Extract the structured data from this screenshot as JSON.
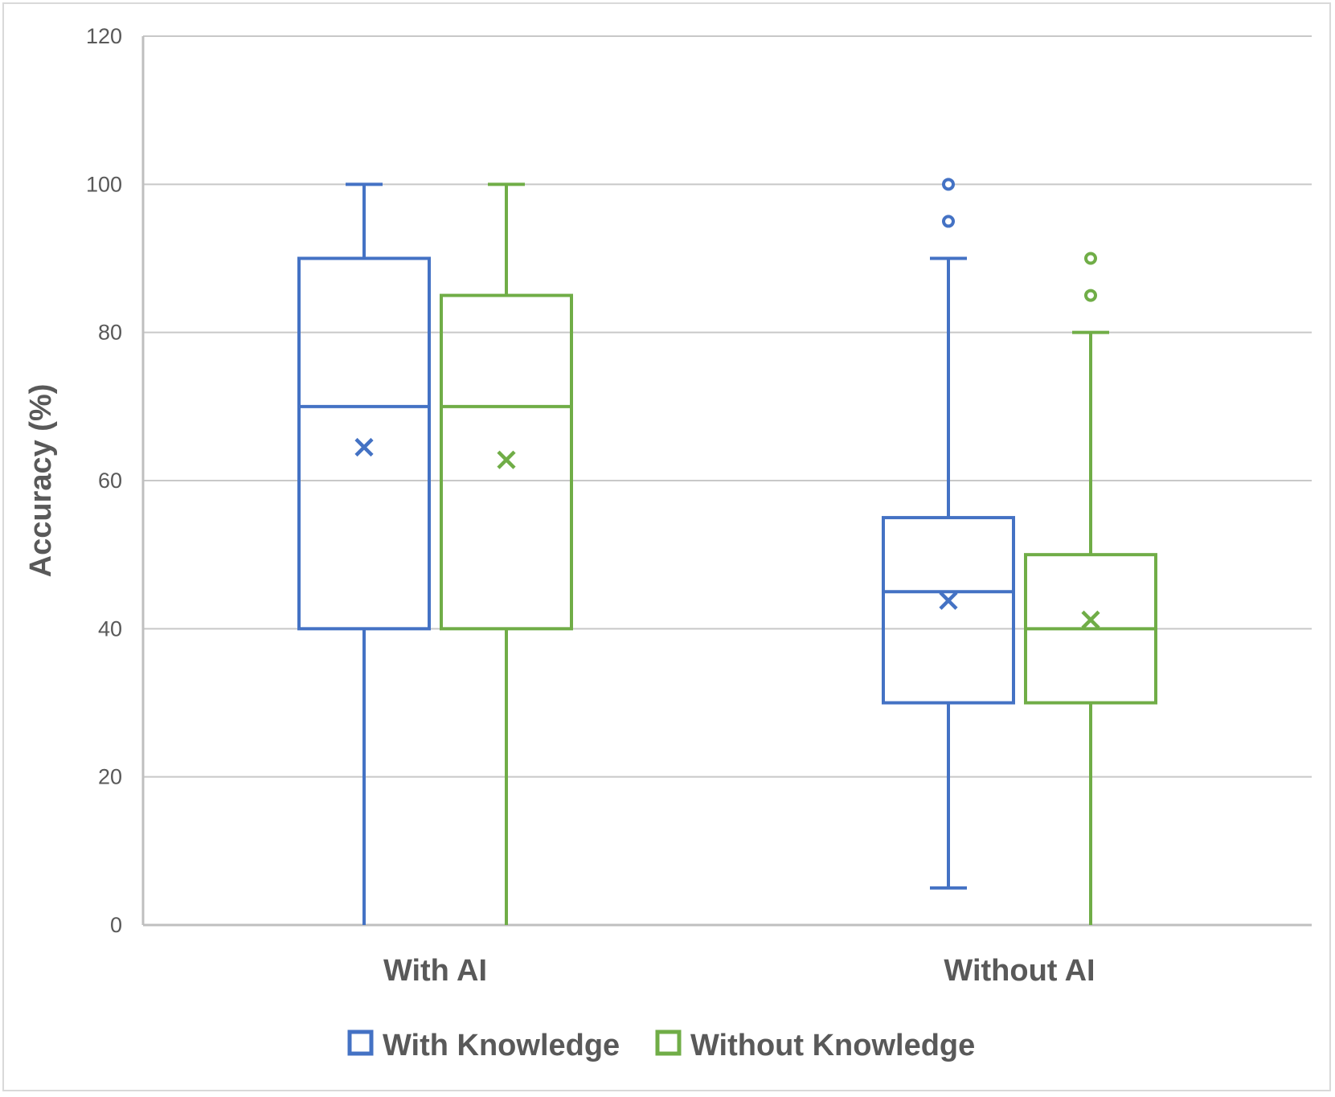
{
  "chart_data": {
    "type": "box",
    "ylabel": "Accuracy (%)",
    "ylim": [
      0,
      120
    ],
    "yticks": [
      0,
      20,
      40,
      60,
      80,
      100,
      120
    ],
    "grid": true,
    "legend_position": "bottom",
    "categories": [
      "With AI",
      "Without AI"
    ],
    "series": [
      {
        "name": "With Knowledge",
        "color": "#4472c4",
        "boxes": [
          {
            "min": 0,
            "q1": 40,
            "median": 70,
            "q3": 90,
            "max": 100,
            "mean": 64.5,
            "outliers": []
          },
          {
            "min": 5,
            "q1": 30,
            "median": 45,
            "q3": 55,
            "max": 90,
            "mean": 43.8,
            "outliers": [
              95,
              100
            ]
          }
        ]
      },
      {
        "name": "Without Knowledge",
        "color": "#70ad47",
        "boxes": [
          {
            "min": 0,
            "q1": 40,
            "median": 70,
            "q3": 85,
            "max": 100,
            "mean": 62.8,
            "outliers": []
          },
          {
            "min": 0,
            "q1": 30,
            "median": 40,
            "q3": 50,
            "max": 80,
            "mean": 41.2,
            "outliers": [
              85,
              90
            ]
          }
        ]
      }
    ]
  }
}
